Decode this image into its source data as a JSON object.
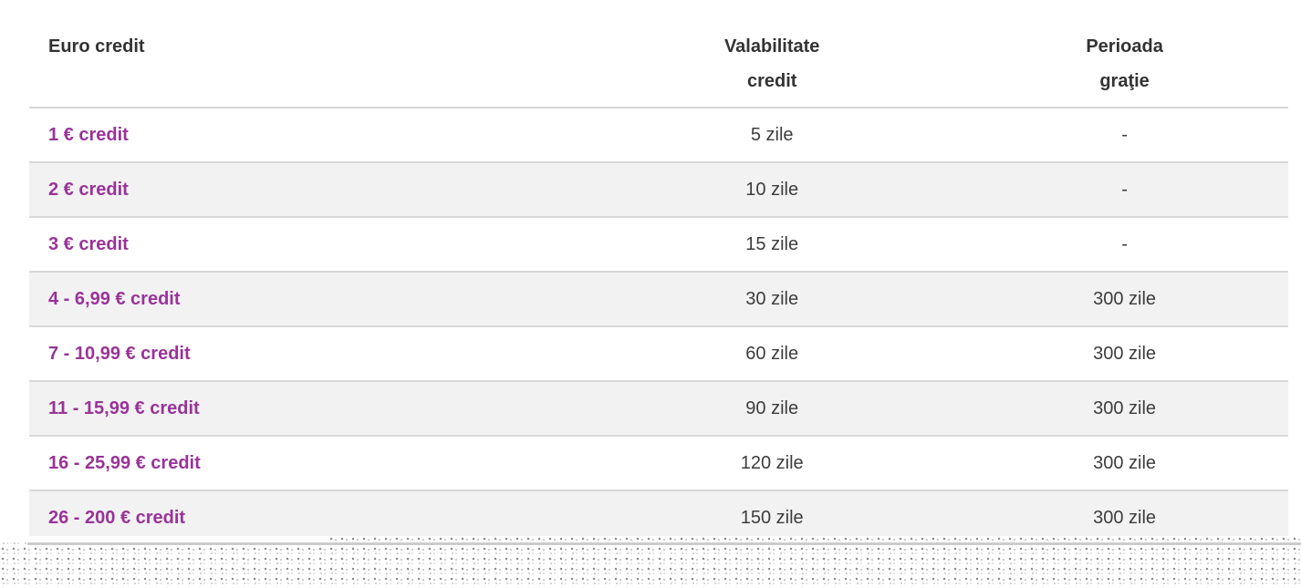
{
  "table": {
    "columns": [
      {
        "line1": "Euro credit",
        "line2": ""
      },
      {
        "line1": "Valabilitate",
        "line2": "credit"
      },
      {
        "line1": "Perioada",
        "line2": "graţie"
      }
    ],
    "rows": [
      {
        "credit": "1 € credit",
        "validity": "5 zile",
        "grace": "-"
      },
      {
        "credit": "2 € credit",
        "validity": "10 zile",
        "grace": "-"
      },
      {
        "credit": "3 € credit",
        "validity": "15 zile",
        "grace": "-"
      },
      {
        "credit": "4 - 6,99 € credit",
        "validity": "30 zile",
        "grace": "300 zile"
      },
      {
        "credit": "7 - 10,99 € credit",
        "validity": "60 zile",
        "grace": "300 zile"
      },
      {
        "credit": "11 - 15,99 € credit",
        "validity": "90 zile",
        "grace": "300 zile"
      },
      {
        "credit": "16 - 25,99 € credit",
        "validity": "120 zile",
        "grace": "300 zile"
      },
      {
        "credit": "26 - 200 € credit",
        "validity": "150 zile",
        "grace": "300 zile"
      }
    ]
  },
  "colors": {
    "credit_text": "#993399",
    "header_text": "#333333",
    "cell_text": "#3d3d3d",
    "row_stripe": "#f2f2f2",
    "row_separator": "#d8d8d8",
    "bottom_bar": "#cccccc"
  }
}
